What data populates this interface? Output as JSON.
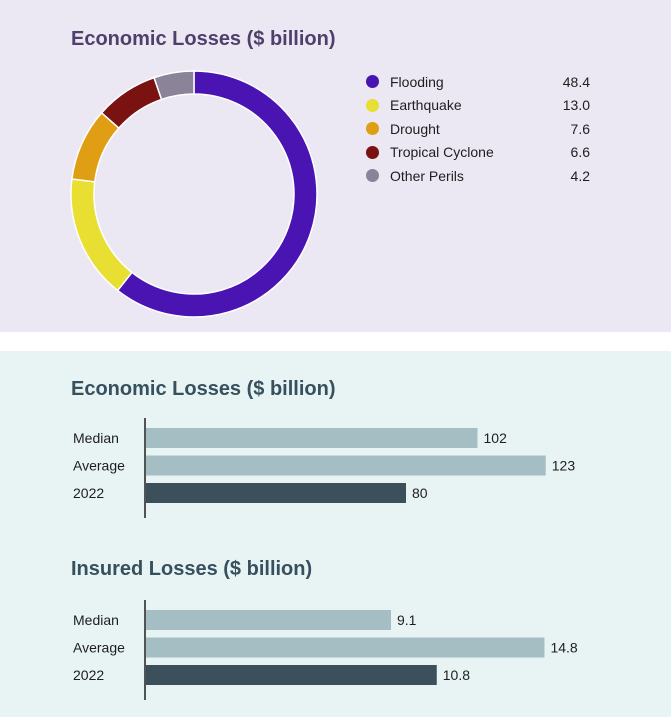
{
  "chart_data": [
    {
      "type": "pie",
      "title": "Economic Losses ($ billion)",
      "donut": true,
      "legend_position": "right",
      "slices": [
        {
          "label": "Flooding",
          "value": 48.4,
          "display": "48.4",
          "color": "#4a14b3"
        },
        {
          "label": "Earthquake",
          "value": 13.0,
          "display": "13.0",
          "color": "#e8df32"
        },
        {
          "label": "Drought",
          "value": 7.6,
          "display": "7.6",
          "color": "#e09e14"
        },
        {
          "label": "Tropical Cyclone",
          "value": 6.6,
          "display": "6.6",
          "color": "#7a1212"
        },
        {
          "label": "Other Perils",
          "value": 4.2,
          "display": "4.2",
          "color": "#8b8499"
        }
      ]
    },
    {
      "type": "bar",
      "orientation": "horizontal",
      "title": "Economic Losses ($ billion)",
      "categories": [
        "Median",
        "Average",
        "2022"
      ],
      "values": [
        102,
        123,
        80
      ],
      "labels": [
        "102",
        "123",
        "80"
      ],
      "colors": [
        "#a5bec3",
        "#a5bec3",
        "#3c505c"
      ],
      "xlim": [
        0,
        140
      ]
    },
    {
      "type": "bar",
      "orientation": "horizontal",
      "title": "Insured Losses ($ billion)",
      "categories": [
        "Median",
        "Average",
        "2022"
      ],
      "values": [
        9.1,
        14.8,
        10.8
      ],
      "labels": [
        "9.1",
        "14.8",
        "10.8"
      ],
      "colors": [
        "#a5bec3",
        "#a5bec3",
        "#3c505c"
      ],
      "xlim": [
        0,
        16.9
      ]
    }
  ]
}
